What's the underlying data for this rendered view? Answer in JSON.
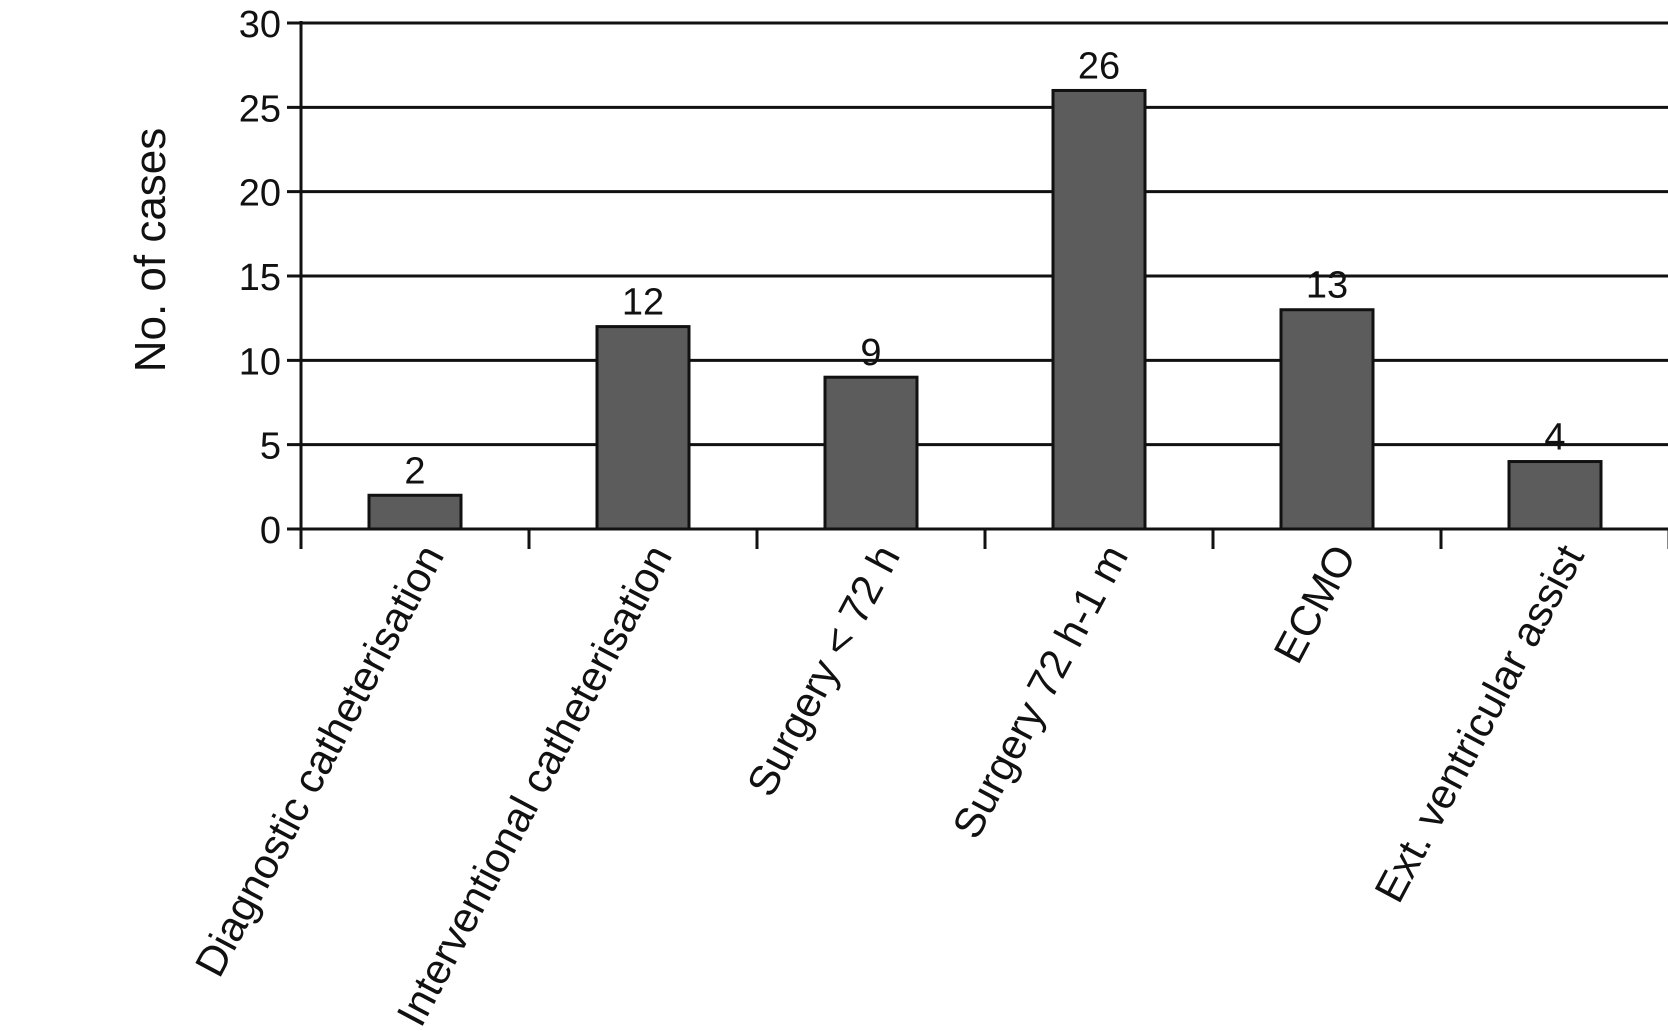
{
  "chart_data": {
    "type": "bar",
    "title": "",
    "xlabel": "",
    "ylabel": "No. of cases",
    "ylim": [
      0,
      30
    ],
    "yticks": [
      0,
      5,
      10,
      15,
      20,
      25,
      30
    ],
    "grid": true,
    "categories": [
      "Diagnostic catheterisation",
      "Interventional catheterisation",
      "Surgery < 72 h",
      "Surgery 72 h-1 m",
      "ECMO",
      "Ext. ventricular assist"
    ],
    "values": [
      2,
      12,
      9,
      26,
      13,
      4
    ],
    "data_labels": [
      "2",
      "12",
      "9",
      "26",
      "13",
      "4"
    ],
    "bar_color": "#5c5c5c"
  }
}
